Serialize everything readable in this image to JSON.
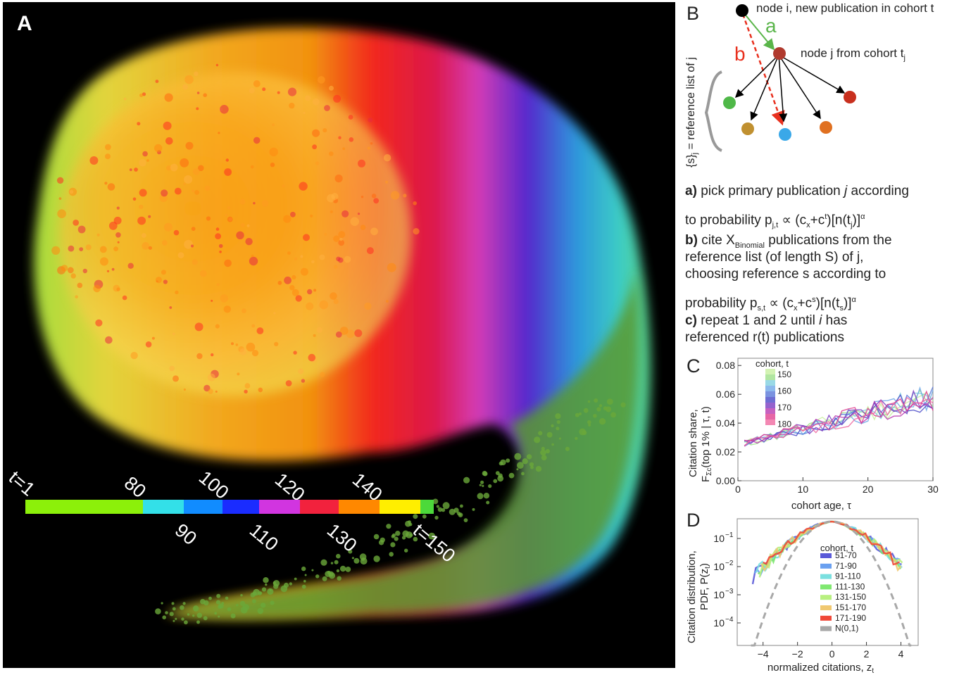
{
  "panel_a": {
    "label": "A",
    "colorbar": {
      "segments": [
        {
          "color": "#8cf00a",
          "frac": 0.288
        },
        {
          "color": "#33e0e8",
          "frac": 0.1
        },
        {
          "color": "#118cff",
          "frac": 0.095
        },
        {
          "color": "#1a2cff",
          "frac": 0.09
        },
        {
          "color": "#d135e0",
          "frac": 0.1
        },
        {
          "color": "#f2223d",
          "frac": 0.095
        },
        {
          "color": "#ff8800",
          "frac": 0.1
        },
        {
          "color": "#ffee00",
          "frac": 0.1
        },
        {
          "color": "#4cd93a",
          "frac": 0.032
        }
      ],
      "top_ticks": [
        "t=1",
        "80",
        "100",
        "120",
        "140"
      ],
      "bottom_ticks": [
        "90",
        "110",
        "130",
        "t=150"
      ]
    }
  },
  "panel_b": {
    "label": "B",
    "node_i_label": "node i, new publication in cohort t",
    "node_j_label": "node j from cohort t",
    "node_j_sub": "j",
    "edge_a": "a",
    "edge_b": "b",
    "ref_list_label": "{s}",
    "ref_list_sub": "j",
    "ref_list_rest": " = reference list of j",
    "colors": {
      "node_i": "#000000",
      "node_j": "#b03a2e",
      "edge_a": "#5ab54a",
      "edge_b": "#e8301e"
    },
    "step_a_1": "pick primary publication ",
    "step_a_2": "j",
    "step_a_3": " according",
    "step_a_line2": "to probability p",
    "step_a_sub": "j,t",
    "step_a_formula": " ∝ (c",
    "step_a_formula2": "+c",
    "step_a_formula3": ")[n(t",
    "step_a_formula4": ")]",
    "step_a_alpha": "α",
    "step_b_1": "cite X",
    "step_b_sub": "Binomial",
    "step_b_2": " publications from the",
    "step_b_line2": "reference list (of length S) of j,",
    "step_b_line3": "choosing reference s according to",
    "step_b_line4": "probability p",
    "step_b_sub2": "s,t",
    "step_b_formula": " ∝ (c",
    "step_b_formula2": "+c",
    "step_b_formula3": ")[n(t",
    "step_b_formula4": ")]",
    "step_c_1": "repeat 1 and 2 until ",
    "step_c_2": "i",
    "step_c_3": " has",
    "step_c_line2": "referenced r(t) publications",
    "letter_a": "a)",
    "letter_b": "b)",
    "letter_c": "c)",
    "sub_x": "x",
    "sup_t": "t",
    "sup_s": "s",
    "sub_j": "j",
    "sub_s": "s"
  },
  "chart_data": [
    {
      "type": "line",
      "panel": "C",
      "xlabel": "cohort age, τ",
      "ylabel_1": "Citation share,",
      "ylabel_2": "F",
      "ylabel_sub": "Σc",
      "ylabel_3": "(top 1% | τ, t)",
      "xlim": [
        0,
        30
      ],
      "ylim": [
        0,
        0.085
      ],
      "xticks": [
        "0",
        "10",
        "20",
        "30"
      ],
      "yticks": [
        "0.00",
        "0.02",
        "0.04",
        "0.06",
        "0.08"
      ],
      "legend_title": "cohort, t",
      "legend_ticks": [
        "150",
        "160",
        "170",
        "180"
      ],
      "series_colors": [
        "#c8f0a0",
        "#9ee08a",
        "#7fcfe0",
        "#6fa8e8",
        "#5a78d8",
        "#4a4ac8",
        "#7a3cc0",
        "#b83ab0",
        "#e04090",
        "#f06aa0"
      ],
      "mean_curve": [
        [
          0,
          0.025
        ],
        [
          3,
          0.027
        ],
        [
          6,
          0.03
        ],
        [
          9,
          0.033
        ],
        [
          12,
          0.036
        ],
        [
          15,
          0.04
        ],
        [
          18,
          0.043
        ],
        [
          21,
          0.047
        ],
        [
          24,
          0.051
        ],
        [
          27,
          0.055
        ],
        [
          30,
          0.058
        ]
      ]
    },
    {
      "type": "line",
      "panel": "D",
      "xlabel": "normalized citations, z",
      "xlabel_sub": "t",
      "ylabel_1": "Citation distribution,",
      "ylabel_2": "PDF, P(z",
      "ylabel_sub": "t",
      "ylabel_3": ")",
      "xlim": [
        -5.5,
        5
      ],
      "ylim_log10": [
        -4.8,
        -0.3
      ],
      "xticks": [
        "−4",
        "−2",
        "0",
        "2",
        "4"
      ],
      "xtick_values": [
        -4,
        -2,
        0,
        2,
        4
      ],
      "yticks": [
        "10",
        "10",
        "10",
        "10"
      ],
      "ytick_exponents": [
        "−1",
        "−2",
        "−3",
        "−4"
      ],
      "ytick_values": [
        -1,
        -2,
        -3,
        -4
      ],
      "legend_title": "cohort, t",
      "series": [
        {
          "name": "51-70",
          "color": "#5a5ad8"
        },
        {
          "name": "71-90",
          "color": "#6aa0f0"
        },
        {
          "name": "91-110",
          "color": "#7ae0e0"
        },
        {
          "name": "111-130",
          "color": "#80e870"
        },
        {
          "name": "131-150",
          "color": "#b8f080"
        },
        {
          "name": "151-170",
          "color": "#f0c870"
        },
        {
          "name": "171-190",
          "color": "#f04838"
        },
        {
          "name": "N(0,1)",
          "color": "#a8a8a8"
        }
      ]
    }
  ]
}
